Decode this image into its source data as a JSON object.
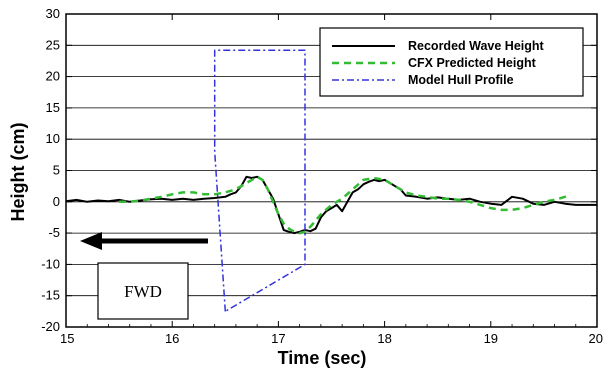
{
  "chart_data": {
    "type": "line",
    "title": "",
    "xlabel": "Time (sec)",
    "ylabel": "Height (cm)",
    "xlim": [
      15,
      20
    ],
    "ylim": [
      -20,
      30
    ],
    "x_ticks": [
      15,
      16,
      17,
      18,
      19,
      20
    ],
    "y_ticks": [
      -20,
      -15,
      -10,
      -5,
      0,
      5,
      10,
      15,
      20,
      25,
      30
    ],
    "grid": "horizontal",
    "legend_position": "top-right",
    "series": [
      {
        "name": "Recorded Wave Height",
        "color": "#000000",
        "style": "solid",
        "x": [
          15.0,
          15.1,
          15.2,
          15.3,
          15.4,
          15.5,
          15.6,
          15.7,
          15.8,
          15.9,
          16.0,
          16.1,
          16.2,
          16.3,
          16.4,
          16.5,
          16.55,
          16.6,
          16.65,
          16.7,
          16.75,
          16.8,
          16.85,
          16.9,
          16.95,
          17.0,
          17.05,
          17.1,
          17.15,
          17.2,
          17.25,
          17.3,
          17.35,
          17.4,
          17.45,
          17.5,
          17.55,
          17.6,
          17.65,
          17.7,
          17.75,
          17.8,
          17.85,
          17.9,
          17.95,
          18.0,
          18.05,
          18.1,
          18.15,
          18.2,
          18.3,
          18.4,
          18.5,
          18.6,
          18.7,
          18.8,
          18.9,
          19.0,
          19.1,
          19.2,
          19.3,
          19.4,
          19.5,
          19.6,
          19.7,
          19.8,
          19.9,
          20.0
        ],
        "y": [
          0.1,
          0.3,
          0.0,
          0.2,
          0.1,
          0.3,
          0.0,
          0.2,
          0.4,
          0.5,
          0.3,
          0.5,
          0.3,
          0.5,
          0.6,
          0.8,
          1.2,
          1.5,
          2.5,
          4.0,
          3.8,
          4.0,
          3.5,
          2.0,
          0.5,
          -2.0,
          -4.5,
          -4.8,
          -5.0,
          -4.8,
          -4.5,
          -4.7,
          -4.3,
          -2.5,
          -1.5,
          -1.0,
          -0.5,
          -1.5,
          0.0,
          1.5,
          2.0,
          2.8,
          3.2,
          3.5,
          3.3,
          3.5,
          3.0,
          2.5,
          2.0,
          1.0,
          0.8,
          0.5,
          0.7,
          0.5,
          0.3,
          0.5,
          0.0,
          -0.3,
          -0.5,
          0.8,
          0.5,
          -0.3,
          -0.5,
          0.0,
          -0.3,
          -0.5,
          -0.5,
          -0.5
        ]
      },
      {
        "name": "CFX Predicted Height",
        "color": "#33bb33",
        "style": "dashed",
        "x": [
          15.5,
          15.6,
          15.7,
          15.8,
          15.9,
          16.0,
          16.1,
          16.2,
          16.3,
          16.4,
          16.5,
          16.6,
          16.7,
          16.75,
          16.8,
          16.85,
          16.9,
          16.95,
          17.0,
          17.05,
          17.1,
          17.15,
          17.2,
          17.25,
          17.3,
          17.35,
          17.4,
          17.5,
          17.6,
          17.7,
          17.8,
          17.9,
          18.0,
          18.1,
          18.2,
          18.3,
          18.4,
          18.5,
          18.6,
          18.7,
          18.8,
          18.9,
          19.0,
          19.1,
          19.2,
          19.3,
          19.4,
          19.5,
          19.6,
          19.7,
          19.75
        ],
        "y": [
          0.0,
          0.0,
          0.2,
          0.5,
          0.8,
          1.2,
          1.5,
          1.5,
          1.2,
          1.2,
          1.5,
          2.0,
          3.0,
          3.5,
          4.0,
          3.5,
          2.0,
          0.0,
          -2.0,
          -3.5,
          -4.3,
          -4.8,
          -5.0,
          -4.8,
          -4.0,
          -3.0,
          -2.0,
          -0.5,
          0.5,
          2.0,
          3.5,
          3.8,
          3.5,
          2.5,
          1.5,
          1.0,
          0.8,
          0.5,
          0.5,
          0.3,
          0.0,
          -0.5,
          -1.0,
          -1.3,
          -1.3,
          -1.0,
          -0.5,
          0.0,
          0.3,
          0.8,
          1.2
        ]
      },
      {
        "name": "Model Hull Profile",
        "color": "#3333dd",
        "style": "dashdot",
        "x": [
          16.5,
          16.4,
          16.4,
          17.25,
          17.25,
          16.5
        ],
        "y": [
          -17.5,
          8.0,
          24.2,
          24.2,
          -10.0,
          -17.5
        ]
      }
    ]
  },
  "annotation": {
    "label": "FWD"
  }
}
